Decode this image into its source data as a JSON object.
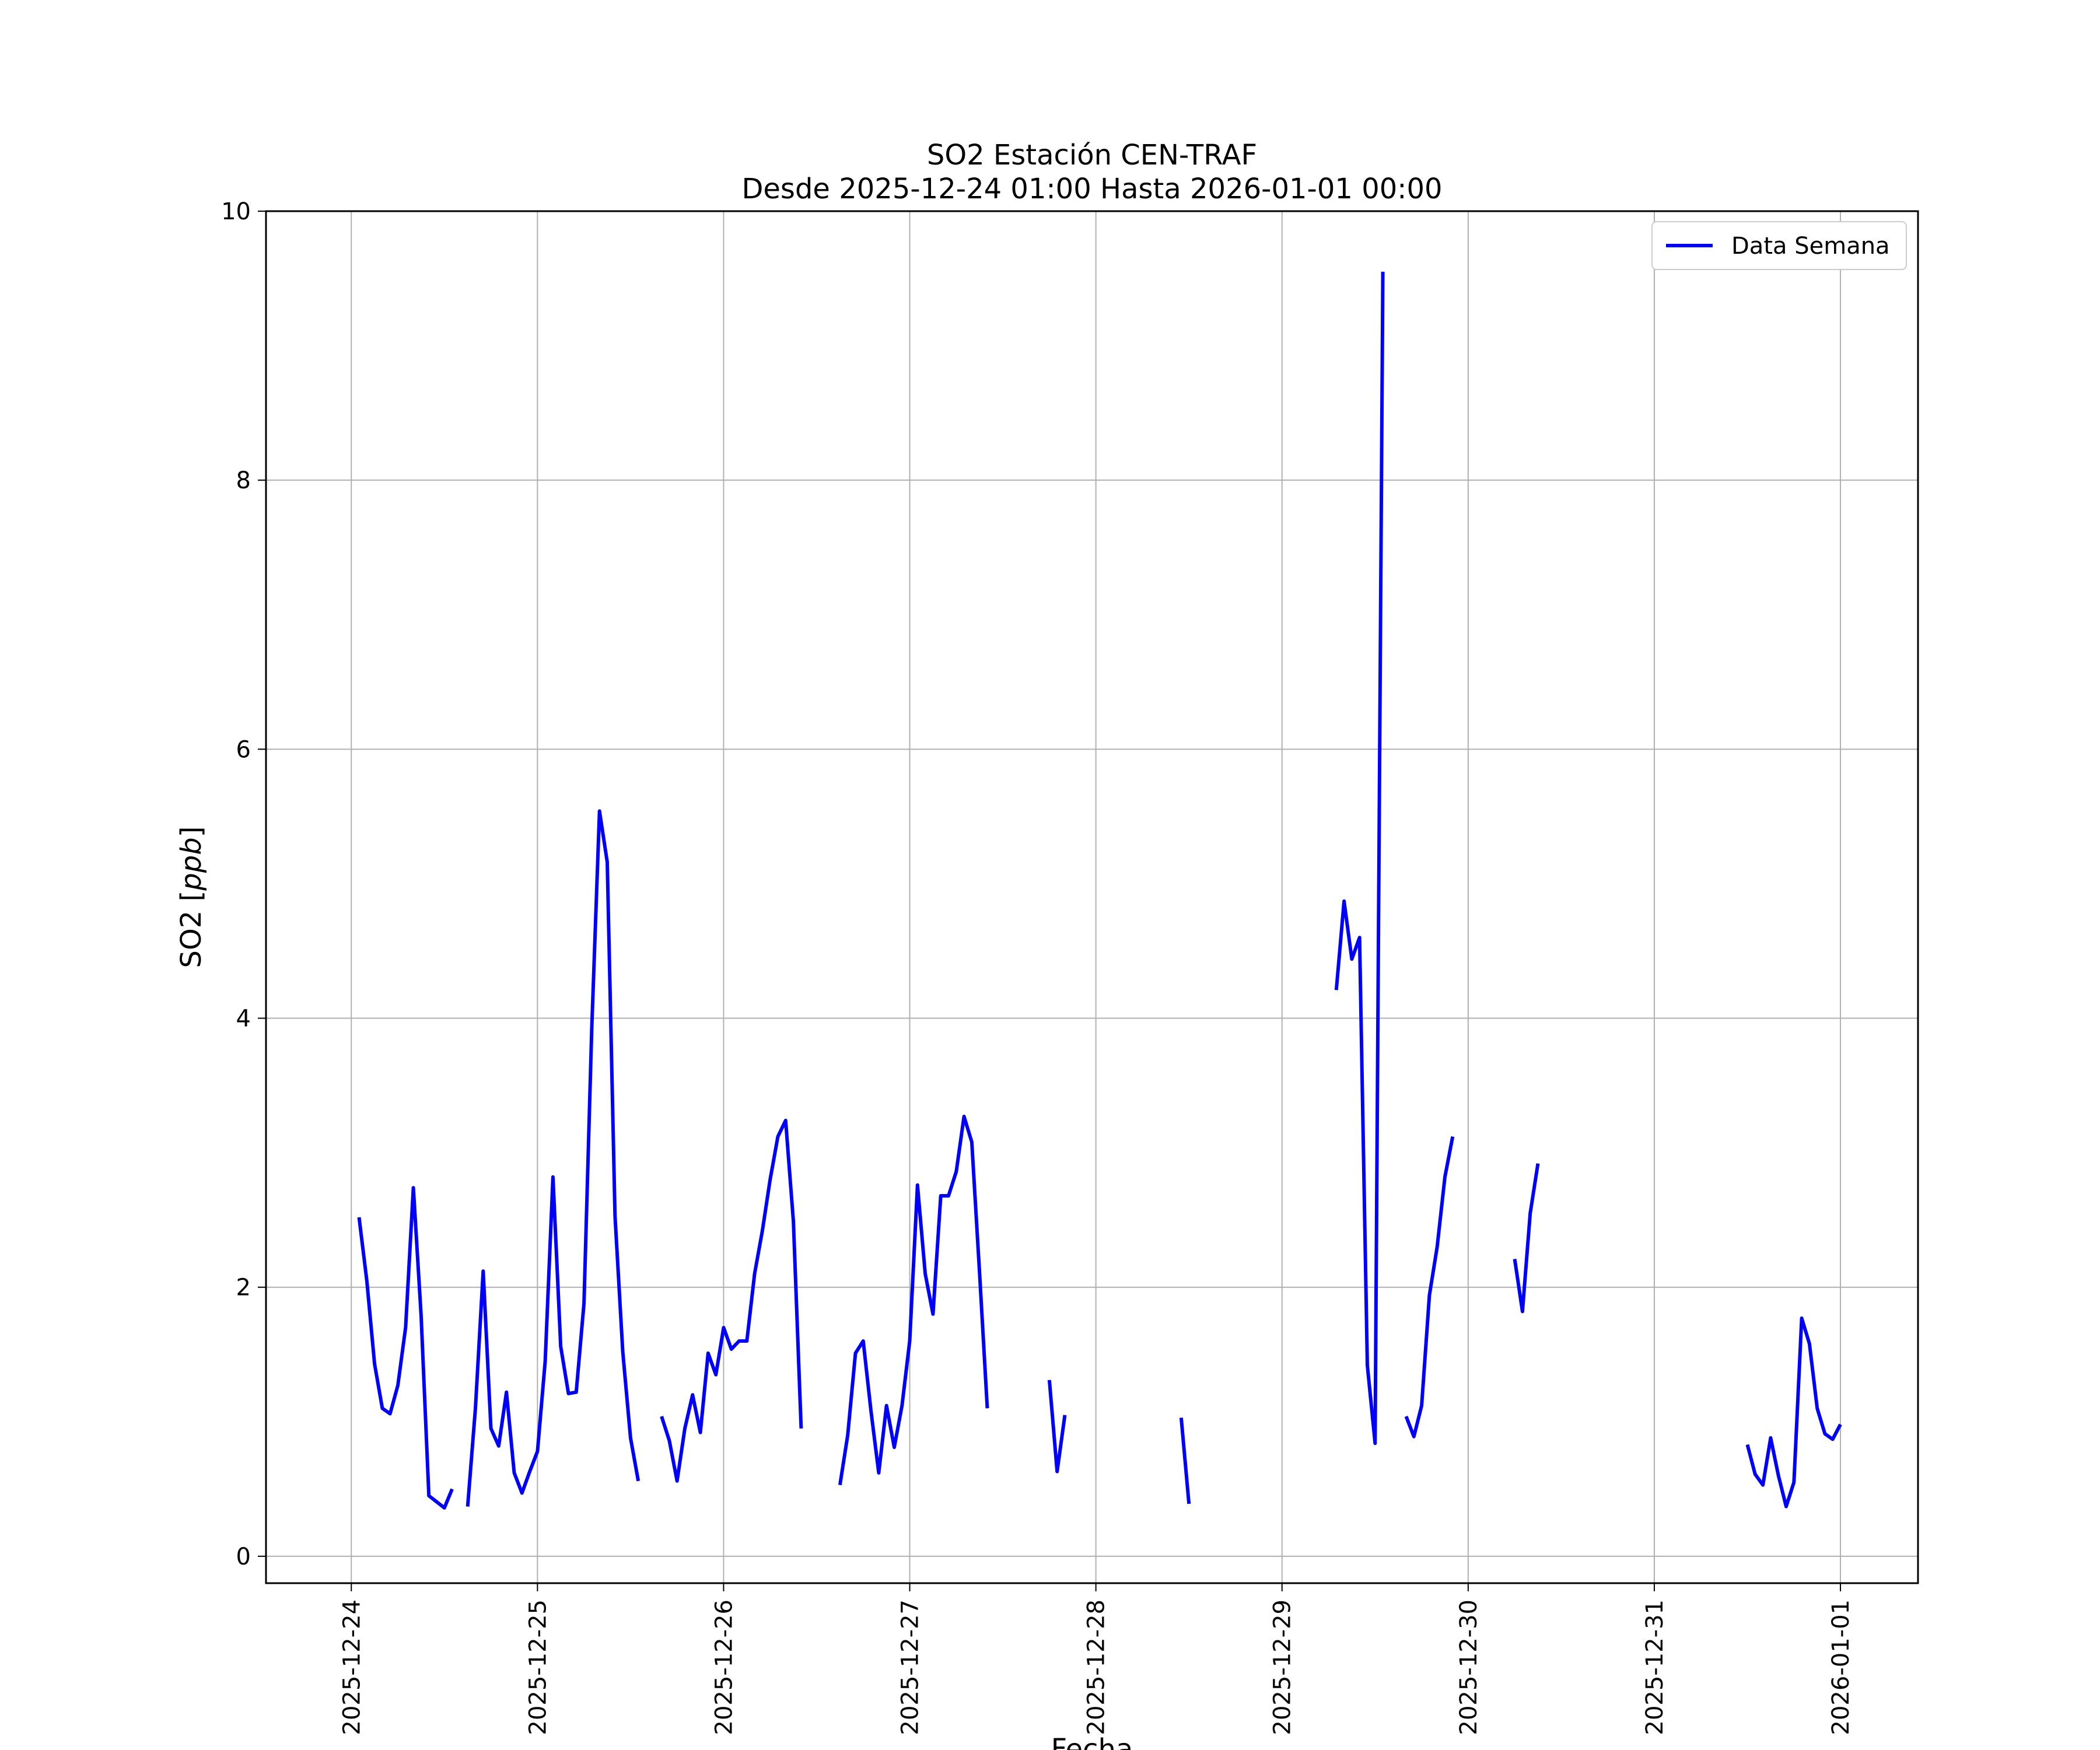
{
  "chart_data": {
    "type": "line",
    "title": "SO2 Estación CEN-TRAF",
    "subtitle": "Desde 2025-12-24 01:00 Hasta 2026-01-01 00:00",
    "xlabel": "Fecha",
    "ylabel": "SO2 [ppb]",
    "ylabel_plain": "SO2 [",
    "ylabel_unit": "ppb",
    "ylabel_close": "]",
    "xlim": [
      "2025-12-23T13:00",
      "2026-01-01T10:00"
    ],
    "ylim": [
      -0.2,
      10
    ],
    "grid": true,
    "legend_position": "top-right",
    "x_ticks": [
      "2025-12-24",
      "2025-12-25",
      "2025-12-26",
      "2025-12-27",
      "2025-12-28",
      "2025-12-29",
      "2025-12-30",
      "2025-12-31",
      "2026-01-01"
    ],
    "y_ticks": [
      0,
      2,
      4,
      6,
      8,
      10
    ],
    "line_color": "#0000ff",
    "series": [
      {
        "name": "Data Semana",
        "segments": [
          [
            [
              "2025-12-24T01:00",
              2.52
            ],
            [
              "2025-12-24T02:00",
              2.05
            ],
            [
              "2025-12-24T03:00",
              1.43
            ],
            [
              "2025-12-24T04:00",
              1.1
            ],
            [
              "2025-12-24T05:00",
              1.06
            ],
            [
              "2025-12-24T06:00",
              1.27
            ],
            [
              "2025-12-24T07:00",
              1.7
            ],
            [
              "2025-12-24T08:00",
              2.74
            ],
            [
              "2025-12-24T09:00",
              1.79
            ],
            [
              "2025-12-24T10:00",
              0.45
            ],
            [
              "2025-12-24T12:00",
              0.36
            ],
            [
              "2025-12-24T13:00",
              0.5
            ]
          ],
          [
            [
              "2025-12-24T15:00",
              0.37
            ],
            [
              "2025-12-24T16:00",
              1.1
            ],
            [
              "2025-12-24T17:00",
              2.12
            ],
            [
              "2025-12-24T18:00",
              0.95
            ],
            [
              "2025-12-24T19:00",
              0.82
            ],
            [
              "2025-12-24T20:00",
              1.22
            ],
            [
              "2025-12-24T21:00",
              0.62
            ],
            [
              "2025-12-24T22:00",
              0.47
            ],
            [
              "2025-12-24T23:00",
              0.63
            ],
            [
              "2025-12-25T00:00",
              0.78
            ],
            [
              "2025-12-25T01:00",
              1.45
            ],
            [
              "2025-12-25T02:00",
              2.82
            ],
            [
              "2025-12-25T03:00",
              1.56
            ],
            [
              "2025-12-25T04:00",
              1.21
            ],
            [
              "2025-12-25T05:00",
              1.22
            ],
            [
              "2025-12-25T06:00",
              1.88
            ],
            [
              "2025-12-25T07:00",
              3.92
            ],
            [
              "2025-12-25T08:00",
              5.54
            ],
            [
              "2025-12-25T09:00",
              5.16
            ],
            [
              "2025-12-25T10:00",
              2.53
            ],
            [
              "2025-12-25T11:00",
              1.52
            ],
            [
              "2025-12-25T12:00",
              0.88
            ],
            [
              "2025-12-25T13:00",
              0.56
            ]
          ],
          [
            [
              "2025-12-25T16:00",
              1.04
            ],
            [
              "2025-12-25T17:00",
              0.86
            ],
            [
              "2025-12-25T18:00",
              0.56
            ],
            [
              "2025-12-25T19:00",
              0.95
            ],
            [
              "2025-12-25T20:00",
              1.2
            ],
            [
              "2025-12-25T21:00",
              0.92
            ],
            [
              "2025-12-25T22:00",
              1.51
            ],
            [
              "2025-12-25T23:00",
              1.35
            ],
            [
              "2025-12-26T00:00",
              1.7
            ],
            [
              "2025-12-26T01:00",
              1.54
            ],
            [
              "2025-12-26T02:00",
              1.6
            ],
            [
              "2025-12-26T03:00",
              1.6
            ],
            [
              "2025-12-26T04:00",
              2.1
            ],
            [
              "2025-12-26T05:00",
              2.42
            ],
            [
              "2025-12-26T06:00",
              2.8
            ],
            [
              "2025-12-26T07:00",
              3.12
            ],
            [
              "2025-12-26T08:00",
              3.24
            ],
            [
              "2025-12-26T09:00",
              2.49
            ],
            [
              "2025-12-26T10:00",
              0.95
            ]
          ],
          [
            [
              "2025-12-26T15:00",
              0.53
            ],
            [
              "2025-12-26T16:00",
              0.9
            ],
            [
              "2025-12-26T17:00",
              1.51
            ],
            [
              "2025-12-26T18:00",
              1.6
            ],
            [
              "2025-12-26T19:00",
              1.08
            ],
            [
              "2025-12-26T20:00",
              0.62
            ],
            [
              "2025-12-26T21:00",
              1.12
            ],
            [
              "2025-12-26T22:00",
              0.81
            ],
            [
              "2025-12-26T23:00",
              1.12
            ],
            [
              "2025-12-27T00:00",
              1.6
            ],
            [
              "2025-12-27T01:00",
              2.76
            ],
            [
              "2025-12-27T02:00",
              2.1
            ],
            [
              "2025-12-27T03:00",
              1.8
            ],
            [
              "2025-12-27T04:00",
              2.68
            ],
            [
              "2025-12-27T05:00",
              2.68
            ],
            [
              "2025-12-27T06:00",
              2.86
            ],
            [
              "2025-12-27T07:00",
              3.27
            ],
            [
              "2025-12-27T08:00",
              3.08
            ],
            [
              "2025-12-27T09:00",
              2.11
            ],
            [
              "2025-12-27T10:00",
              1.1
            ]
          ],
          [
            [
              "2025-12-27T18:00",
              1.31
            ],
            [
              "2025-12-27T19:00",
              0.63
            ],
            [
              "2025-12-27T20:00",
              1.05
            ]
          ],
          [
            [
              "2025-12-28T11:00",
              1.03
            ],
            [
              "2025-12-28T12:00",
              0.39
            ]
          ],
          [
            [
              "2025-12-29T07:00",
              4.21
            ],
            [
              "2025-12-29T08:00",
              4.87
            ],
            [
              "2025-12-29T09:00",
              4.44
            ],
            [
              "2025-12-29T10:00",
              4.6
            ],
            [
              "2025-12-29T11:00",
              1.42
            ],
            [
              "2025-12-29T12:00",
              0.84
            ],
            [
              "2025-12-29T13:00",
              9.55
            ]
          ],
          [
            [
              "2025-12-29T16:00",
              1.04
            ],
            [
              "2025-12-29T17:00",
              0.89
            ],
            [
              "2025-12-29T18:00",
              1.12
            ],
            [
              "2025-12-29T19:00",
              1.94
            ],
            [
              "2025-12-29T20:00",
              2.3
            ],
            [
              "2025-12-29T21:00",
              2.82
            ],
            [
              "2025-12-29T22:00",
              3.12
            ]
          ],
          [
            [
              "2025-12-30T06:00",
              2.21
            ],
            [
              "2025-12-30T07:00",
              1.82
            ],
            [
              "2025-12-30T08:00",
              2.55
            ],
            [
              "2025-12-30T09:00",
              2.92
            ]
          ],
          [
            [
              "2025-12-31T12:00",
              0.83
            ],
            [
              "2025-12-31T13:00",
              0.61
            ],
            [
              "2025-12-31T14:00",
              0.53
            ],
            [
              "2025-12-31T15:00",
              0.88
            ],
            [
              "2025-12-31T16:00",
              0.6
            ],
            [
              "2025-12-31T17:00",
              0.37
            ],
            [
              "2025-12-31T18:00",
              0.55
            ],
            [
              "2025-12-31T19:00",
              1.77
            ],
            [
              "2025-12-31T20:00",
              1.58
            ],
            [
              "2025-12-31T21:00",
              1.1
            ],
            [
              "2025-12-31T22:00",
              0.91
            ],
            [
              "2025-12-31T23:00",
              0.87
            ],
            [
              "2026-01-01T00:00",
              0.98
            ]
          ]
        ]
      }
    ]
  }
}
